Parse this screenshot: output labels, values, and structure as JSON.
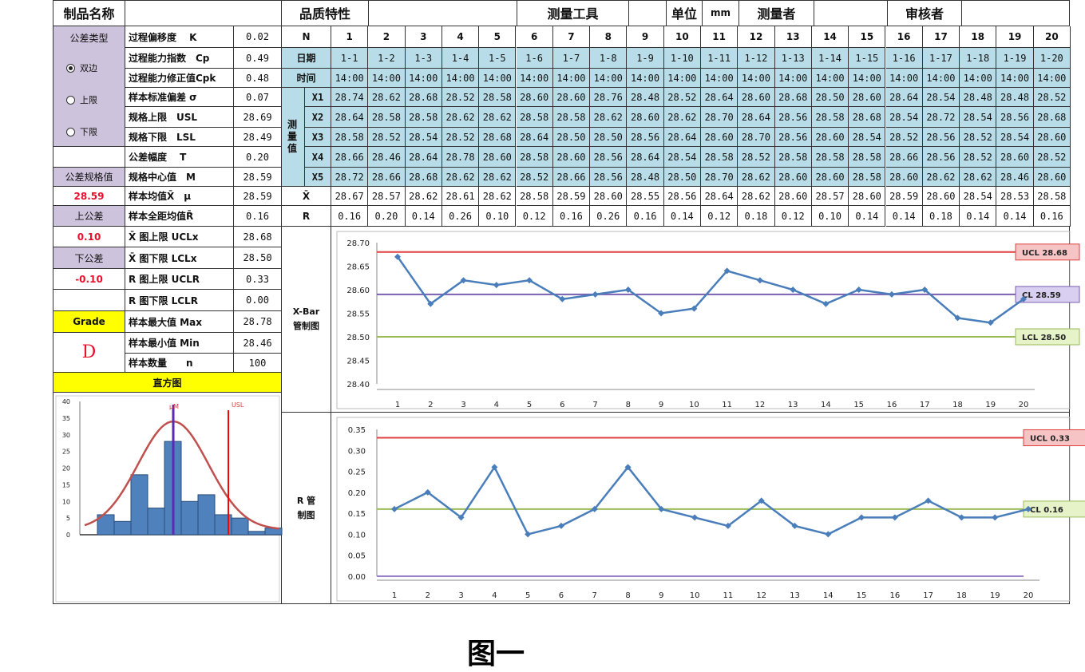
{
  "header": {
    "product_name_label": "制品名称",
    "quality_label": "品质特性",
    "tool_label": "测量工具",
    "unit_label": "单位",
    "unit_value": "mm",
    "measurer_label": "测量者",
    "reviewer_label": "审核者"
  },
  "left": {
    "tolerance_type_label": "公差类型",
    "options": [
      {
        "label": "双边",
        "selected": true
      },
      {
        "label": "上限",
        "selected": false
      },
      {
        "label": "下限",
        "selected": false
      }
    ],
    "spec_value_label": "公差规格值",
    "spec_value": "28.59",
    "upper_tol_label": "上公差",
    "upper_tol": "0.10",
    "lower_tol_label": "下公差",
    "lower_tol": "-0.10",
    "grade_label": "Grade",
    "grade": "D",
    "histogram_label": "直方图"
  },
  "stats": [
    {
      "label": "过程偏移度　 K",
      "value": "0.02"
    },
    {
      "label": "过程能力指数　Cp",
      "value": "0.49"
    },
    {
      "label": "过程能力修正值Cpk",
      "value": "0.48"
    },
    {
      "label": "样本标准偏差 σ",
      "value": "0.07"
    },
    {
      "label": "规格上限　USL",
      "value": "28.69"
    },
    {
      "label": "规格下限　LSL",
      "value": "28.49"
    },
    {
      "label": "公差幅度　 T",
      "value": "0.20"
    },
    {
      "label": "规格中心值　M",
      "value": "28.59"
    },
    {
      "label": "样本均值X̄　μ",
      "value": "28.59"
    },
    {
      "label": "样本全距均值R̄",
      "value": "0.16"
    },
    {
      "label": "X̄ 图上限 UCLx",
      "value": "28.68"
    },
    {
      "label": "X̄ 图下限 LCLx",
      "value": "28.50"
    },
    {
      "label": "R 图上限 UCLR",
      "value": "0.33"
    },
    {
      "label": "R 图下限 LCLR",
      "value": "0.00"
    },
    {
      "label": "样本最大值 Max",
      "value": "28.78"
    },
    {
      "label": "样本最小值 Min",
      "value": "28.46"
    },
    {
      "label": "样本数量　　n",
      "value": "100"
    }
  ],
  "table": {
    "no_label": "N",
    "date_label": "日期",
    "time_label": "时间",
    "measure_label": "测量值",
    "x_labels": [
      "X1",
      "X2",
      "X3",
      "X4",
      "X5"
    ],
    "mean_label": "X̄",
    "range_label": "R",
    "numbers": [
      "1",
      "2",
      "3",
      "4",
      "5",
      "6",
      "7",
      "8",
      "9",
      "10",
      "11",
      "12",
      "13",
      "14",
      "15",
      "16",
      "17",
      "18",
      "19",
      "20"
    ],
    "dates": [
      "1-1",
      "1-2",
      "1-3",
      "1-4",
      "1-5",
      "1-6",
      "1-7",
      "1-8",
      "1-9",
      "1-10",
      "1-11",
      "1-12",
      "1-13",
      "1-14",
      "1-15",
      "1-16",
      "1-17",
      "1-18",
      "1-19",
      "1-20"
    ],
    "times": [
      "14:00",
      "14:00",
      "14:00",
      "14:00",
      "14:00",
      "14:00",
      "14:00",
      "14:00",
      "14:00",
      "14:00",
      "14:00",
      "14:00",
      "14:00",
      "14:00",
      "14:00",
      "14:00",
      "14:00",
      "14:00",
      "14:00",
      "14:00"
    ],
    "x": [
      [
        "28.74",
        "28.62",
        "28.68",
        "28.52",
        "28.58",
        "28.60",
        "28.60",
        "28.76",
        "28.48",
        "28.52",
        "28.64",
        "28.60",
        "28.68",
        "28.50",
        "28.60",
        "28.64",
        "28.54",
        "28.48",
        "28.48",
        "28.52"
      ],
      [
        "28.64",
        "28.58",
        "28.58",
        "28.62",
        "28.62",
        "28.58",
        "28.58",
        "28.62",
        "28.60",
        "28.62",
        "28.70",
        "28.64",
        "28.56",
        "28.58",
        "28.68",
        "28.54",
        "28.72",
        "28.54",
        "28.56",
        "28.68"
      ],
      [
        "28.58",
        "28.52",
        "28.54",
        "28.52",
        "28.68",
        "28.64",
        "28.50",
        "28.50",
        "28.56",
        "28.64",
        "28.60",
        "28.70",
        "28.56",
        "28.60",
        "28.54",
        "28.52",
        "28.56",
        "28.52",
        "28.54",
        "28.60"
      ],
      [
        "28.66",
        "28.46",
        "28.64",
        "28.78",
        "28.60",
        "28.58",
        "28.60",
        "28.56",
        "28.64",
        "28.54",
        "28.58",
        "28.52",
        "28.58",
        "28.58",
        "28.58",
        "28.66",
        "28.56",
        "28.52",
        "28.60",
        "28.52"
      ],
      [
        "28.72",
        "28.66",
        "28.68",
        "28.62",
        "28.62",
        "28.52",
        "28.66",
        "28.56",
        "28.48",
        "28.50",
        "28.70",
        "28.62",
        "28.60",
        "28.60",
        "28.58",
        "28.60",
        "28.62",
        "28.62",
        "28.46",
        "28.60"
      ]
    ],
    "means": [
      "28.67",
      "28.57",
      "28.62",
      "28.61",
      "28.62",
      "28.58",
      "28.59",
      "28.60",
      "28.55",
      "28.56",
      "28.64",
      "28.62",
      "28.60",
      "28.57",
      "28.60",
      "28.59",
      "28.60",
      "28.54",
      "28.53",
      "28.58"
    ],
    "ranges": [
      "0.16",
      "0.20",
      "0.14",
      "0.26",
      "0.10",
      "0.12",
      "0.16",
      "0.26",
      "0.16",
      "0.14",
      "0.12",
      "0.18",
      "0.12",
      "0.10",
      "0.14",
      "0.14",
      "0.18",
      "0.14",
      "0.14",
      "0.16"
    ]
  },
  "chart_data": [
    {
      "type": "histogram",
      "title": "直方图",
      "yticks": [
        "0",
        "5",
        "10",
        "15",
        "20",
        "25",
        "30",
        "35",
        "40"
      ],
      "ylim": [
        0,
        40
      ],
      "values": [
        6,
        4,
        18,
        8,
        28,
        10,
        12,
        6,
        5,
        1,
        2
      ],
      "markers": [
        {
          "label": "μM",
          "color": "#3b3bd0"
        },
        {
          "label": "USL",
          "color": "#ff0000"
        }
      ],
      "curve_color": "#c0504d",
      "bar_color": "#4f81bd"
    },
    {
      "type": "line",
      "title": "X-Bar 管制图",
      "x": [
        1,
        2,
        3,
        4,
        5,
        6,
        7,
        8,
        9,
        10,
        11,
        12,
        13,
        14,
        15,
        16,
        17,
        18,
        19,
        20
      ],
      "y": [
        28.67,
        28.57,
        28.62,
        28.61,
        28.62,
        28.58,
        28.59,
        28.6,
        28.55,
        28.56,
        28.64,
        28.62,
        28.6,
        28.57,
        28.6,
        28.59,
        28.6,
        28.54,
        28.53,
        28.58
      ],
      "ylim": [
        28.4,
        28.7
      ],
      "yticks": [
        "28.40",
        "28.45",
        "28.50",
        "28.55",
        "28.60",
        "28.65",
        "28.70"
      ],
      "lines": [
        {
          "label": "UCL 28.68",
          "value": 28.68,
          "color": "#e04040",
          "fill": "#f6c4c4"
        },
        {
          "label": "CL 28.59",
          "value": 28.59,
          "color": "#7a5fb0",
          "fill": "#d9cff0"
        },
        {
          "label": "LCL 28.50",
          "value": 28.5,
          "color": "#9bbb59",
          "fill": "#e6f2c8"
        }
      ]
    },
    {
      "type": "line",
      "title": "R 管制图",
      "x": [
        1,
        2,
        3,
        4,
        5,
        6,
        7,
        8,
        9,
        10,
        11,
        12,
        13,
        14,
        15,
        16,
        17,
        18,
        19,
        20
      ],
      "y": [
        0.16,
        0.2,
        0.14,
        0.26,
        0.1,
        0.12,
        0.16,
        0.26,
        0.16,
        0.14,
        0.12,
        0.18,
        0.12,
        0.1,
        0.14,
        0.14,
        0.18,
        0.14,
        0.14,
        0.16
      ],
      "ylim": [
        0,
        0.35
      ],
      "yticks": [
        "0.00",
        "0.05",
        "0.10",
        "0.15",
        "0.20",
        "0.25",
        "0.30",
        "0.35"
      ],
      "lines": [
        {
          "label": "UCL 0.33",
          "value": 0.33,
          "color": "#e04040",
          "fill": "#f6c4c4"
        },
        {
          "label": "CL 0.16",
          "value": 0.16,
          "color": "#9bbb59",
          "fill": "#e6f2c8"
        },
        {
          "label": "",
          "value": 0,
          "color": "#9a80c8",
          "fill": ""
        }
      ]
    }
  ],
  "caption": "图一"
}
